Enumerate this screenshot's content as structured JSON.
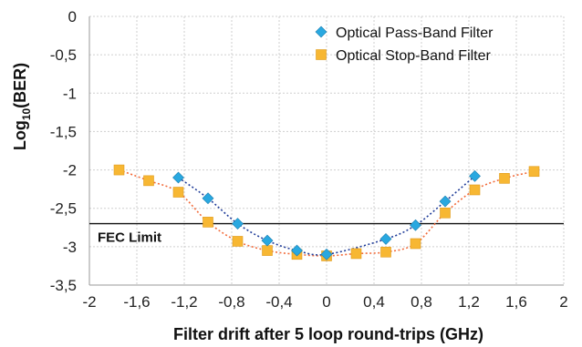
{
  "chart_data": {
    "type": "scatter",
    "xlabel": "Filter drift after 5 loop round-trips (GHz)",
    "ylabel": "Log10(BER)",
    "ylabel_base": "Log",
    "ylabel_sub": "10",
    "ylabel_rest": "(BER)",
    "xlim": [
      -2,
      2
    ],
    "ylim": [
      -3.5,
      0
    ],
    "grid": true,
    "legend_position": "top-right",
    "xticks": [
      -2,
      -1.6,
      -1.2,
      -0.8,
      -0.4,
      0,
      0.4,
      0.8,
      1.2,
      1.6,
      2
    ],
    "xtick_labels": [
      "-2",
      "-1,6",
      "-1,2",
      "-0,8",
      "-0,4",
      "0",
      "0,4",
      "0,8",
      "1,2",
      "1,6",
      "2"
    ],
    "yticks": [
      0,
      -0.5,
      -1,
      -1.5,
      -2,
      -2.5,
      -3,
      -3.5
    ],
    "ytick_labels": [
      "0",
      "-0,5",
      "-1",
      "-1,5",
      "-2",
      "-2,5",
      "-3",
      "-3,5"
    ],
    "series": [
      {
        "name": "Optical Pass-Band Filter",
        "marker": "diamond",
        "color": "#29a8e0",
        "line_color": "#1f3c99",
        "x": [
          -1.25,
          -1.0,
          -0.75,
          -0.5,
          -0.25,
          0,
          0.5,
          0.75,
          1.0,
          1.25
        ],
        "y": [
          -2.1,
          -2.37,
          -2.7,
          -2.92,
          -3.05,
          -3.1,
          -2.9,
          -2.72,
          -2.41,
          -2.08
        ]
      },
      {
        "name": "Optical Stop-Band Filter",
        "marker": "square",
        "color": "#f7b733",
        "line_color": "#f26b3a",
        "x": [
          -1.75,
          -1.5,
          -1.25,
          -1.0,
          -0.75,
          -0.5,
          -0.25,
          0,
          0.25,
          0.5,
          0.75,
          1.0,
          1.25,
          1.5,
          1.75
        ],
        "y": [
          -2.0,
          -2.14,
          -2.29,
          -2.68,
          -2.93,
          -3.05,
          -3.1,
          -3.12,
          -3.09,
          -3.07,
          -2.96,
          -2.56,
          -2.26,
          -2.11,
          -2.02
        ]
      }
    ],
    "reference_lines": [
      {
        "label": "FEC Limit",
        "y": -2.7,
        "color": "#111111"
      }
    ]
  }
}
